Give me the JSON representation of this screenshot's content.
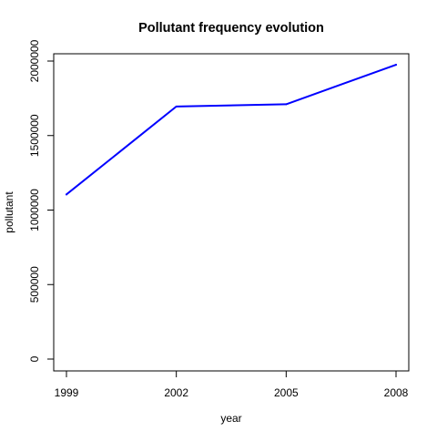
{
  "chart_data": {
    "type": "line",
    "title": "Pollutant frequency evolution",
    "xlabel": "year",
    "ylabel": "pollutant",
    "x": [
      1999,
      2002,
      2005,
      2008
    ],
    "x_ticks": [
      "1999",
      "2002",
      "2005",
      "2008"
    ],
    "y_ticks": [
      "0",
      "500000",
      "1000000",
      "1500000",
      "2000000"
    ],
    "xlim": [
      1999,
      2008
    ],
    "ylim": [
      0,
      2000000
    ],
    "grid": false,
    "series": [
      {
        "values": [
          1105000,
          1695000,
          1710000,
          1975000
        ],
        "color": "#0000ff"
      }
    ]
  }
}
